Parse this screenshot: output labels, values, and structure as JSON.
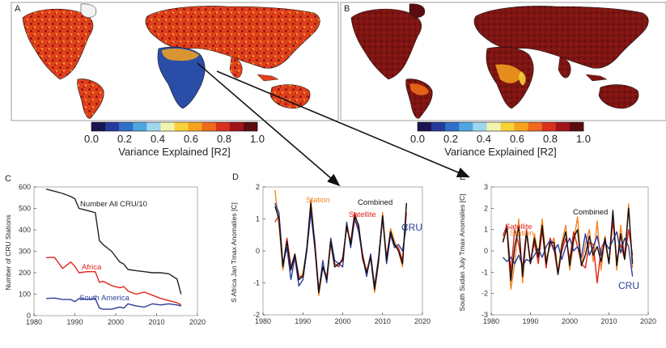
{
  "maps": {
    "left_label": "A",
    "right_label": "B",
    "colorbar": {
      "ticks": [
        "0.0",
        "0.2",
        "0.4",
        "0.6",
        "0.8",
        "1.0"
      ],
      "title": "Variance Explained [R2]",
      "colors": [
        "#1a1450",
        "#263a9c",
        "#2f6fc8",
        "#4fa6e0",
        "#9fd6ee",
        "#f3f3b0",
        "#f9d23a",
        "#f7a21e",
        "#ee6a1c",
        "#d9301e",
        "#a0141a",
        "#5b0c10"
      ]
    }
  },
  "chart_data": [
    {
      "type": "line",
      "panel": "C",
      "xlim": [
        1980,
        2020
      ],
      "ylim": [
        0,
        600
      ],
      "xticks": [
        1980,
        1990,
        2000,
        2010,
        2020
      ],
      "yticks": [
        0,
        100,
        200,
        300,
        400,
        500,
        600
      ],
      "ylabel": "Number of CRU Stations",
      "x": [
        1983,
        1985,
        1987,
        1989,
        1990,
        1991,
        1993,
        1995,
        1996,
        1997,
        1999,
        2001,
        2002,
        2003,
        2005,
        2007,
        2009,
        2011,
        2013,
        2015,
        2016
      ],
      "series": [
        {
          "name": "Number All CRU/10",
          "color": "#222222",
          "values": [
            590,
            580,
            570,
            555,
            545,
            500,
            490,
            480,
            350,
            330,
            300,
            250,
            240,
            215,
            210,
            205,
            200,
            200,
            195,
            170,
            100
          ]
        },
        {
          "name": "Africa",
          "color": "#e2231a",
          "values": [
            270,
            272,
            220,
            250,
            230,
            200,
            205,
            205,
            155,
            160,
            140,
            130,
            135,
            115,
            100,
            110,
            95,
            80,
            70,
            60,
            50
          ]
        },
        {
          "name": "South America",
          "color": "#2c3e99",
          "values": [
            80,
            82,
            75,
            75,
            65,
            80,
            75,
            80,
            35,
            30,
            30,
            40,
            35,
            55,
            45,
            40,
            55,
            50,
            55,
            50,
            45
          ]
        }
      ]
    },
    {
      "type": "line",
      "panel": "D",
      "xlim": [
        1980,
        2020
      ],
      "ylim": [
        -2,
        2
      ],
      "xticks": [
        1980,
        1990,
        2000,
        2010,
        2020
      ],
      "yticks": [
        -2,
        -1,
        0,
        1,
        2
      ],
      "ylabel": "S Africa Jan Tmax Anomalies [C]",
      "x": [
        1983,
        1984,
        1985,
        1986,
        1987,
        1988,
        1989,
        1990,
        1991,
        1992,
        1993,
        1994,
        1995,
        1996,
        1997,
        1998,
        1999,
        2000,
        2001,
        2002,
        2003,
        2004,
        2005,
        2006,
        2007,
        2008,
        2009,
        2010,
        2011,
        2012,
        2013,
        2014,
        2015,
        2016
      ],
      "series": [
        {
          "name": "Station",
          "color": "#f58220",
          "values": [
            1.9,
            0.8,
            -0.6,
            0.3,
            -0.6,
            -0.1,
            -0.9,
            -0.7,
            0.0,
            1.6,
            0.2,
            -1.4,
            -0.5,
            -0.9,
            0.2,
            -0.5,
            -0.4,
            -0.3,
            0.8,
            0.2,
            1.1,
            0.8,
            -0.3,
            -0.6,
            -0.2,
            -1.3,
            -0.4,
            1.2,
            -0.3,
            0.7,
            0.3,
            0.0,
            -0.5,
            1.5
          ]
        },
        {
          "name": "Satellite",
          "color": "#e2231a",
          "values": [
            0.9,
            1.1,
            -0.5,
            0.4,
            -0.5,
            -0.1,
            -0.8,
            -0.8,
            0.1,
            1.3,
            0.3,
            -1.2,
            -0.5,
            -0.8,
            0.3,
            -0.4,
            -0.5,
            -0.2,
            0.7,
            0.3,
            1.2,
            0.7,
            -0.1,
            -0.7,
            -0.1,
            -1.2,
            -0.3,
            1.0,
            -0.2,
            0.6,
            0.2,
            0.1,
            -0.3,
            1.2
          ]
        },
        {
          "name": "CRU",
          "color": "#2c3e99",
          "values": [
            1.5,
            1.2,
            -0.4,
            0.1,
            -0.9,
            -0.2,
            -1.1,
            -0.9,
            0.0,
            1.2,
            0.1,
            -1.3,
            -0.3,
            -1.0,
            0.4,
            -0.3,
            -0.4,
            -0.5,
            0.9,
            0.1,
            1.0,
            0.6,
            -0.2,
            -0.8,
            -0.1,
            -1.1,
            -0.2,
            1.1,
            -0.4,
            0.5,
            0.1,
            0.2,
            0.0,
            0.8
          ]
        },
        {
          "name": "Combined",
          "color": "#111111",
          "values": [
            1.4,
            1.0,
            -0.5,
            0.3,
            -0.6,
            -0.1,
            -0.9,
            -0.8,
            0.1,
            1.5,
            0.2,
            -1.3,
            -0.5,
            -0.9,
            0.3,
            -0.5,
            -0.4,
            -0.3,
            0.8,
            0.2,
            1.1,
            0.8,
            -0.2,
            -0.7,
            -0.2,
            -1.2,
            -0.3,
            1.1,
            -0.3,
            0.6,
            0.2,
            0.0,
            -0.4,
            1.5
          ]
        }
      ]
    },
    {
      "type": "line",
      "panel": "E",
      "xlim": [
        1980,
        2020
      ],
      "ylim": [
        -3,
        3
      ],
      "xticks": [
        1980,
        1990,
        2000,
        2010,
        2020
      ],
      "yticks": [
        -3,
        -2,
        -1,
        0,
        1,
        2,
        3
      ],
      "ylabel": "South Sudan July Tmax Anomalies [C]",
      "x": [
        1983,
        1984,
        1985,
        1986,
        1987,
        1988,
        1989,
        1990,
        1991,
        1992,
        1993,
        1994,
        1995,
        1996,
        1997,
        1998,
        1999,
        2000,
        2001,
        2002,
        2003,
        2004,
        2005,
        2006,
        2007,
        2008,
        2009,
        2010,
        2011,
        2012,
        2013,
        2014,
        2015,
        2016
      ],
      "series": [
        {
          "name": "Station",
          "color": "#f58220",
          "values": [
            0.5,
            1.0,
            -1.8,
            -0.6,
            1.5,
            -1.5,
            0.9,
            -0.6,
            0.8,
            -0.2,
            1.5,
            -0.4,
            0.2,
            0.6,
            -1.0,
            0.4,
            1.2,
            -0.9,
            0.4,
            1.6,
            -0.7,
            0.3,
            1.0,
            -0.5,
            1.4,
            -0.9,
            0.7,
            -0.6,
            1.8,
            -0.9,
            1.2,
            -0.3,
            2.2,
            -0.8
          ]
        },
        {
          "name": "Satellite",
          "color": "#e2231a",
          "values": [
            0.7,
            1.2,
            -1.0,
            1.0,
            0.3,
            -0.8,
            1.0,
            -0.5,
            0.4,
            -0.6,
            1.0,
            -0.8,
            0.6,
            0.1,
            -1.1,
            0.0,
            0.6,
            -0.4,
            0.9,
            0.2,
            -0.6,
            -0.8,
            0.4,
            0.3,
            -1.5,
            0.1,
            0.5,
            -0.6,
            1.4,
            -0.4,
            0.3,
            -0.4,
            1.0,
            -0.2
          ]
        },
        {
          "name": "CRU",
          "color": "#2c3e99",
          "values": [
            -0.3,
            -0.5,
            -0.3,
            -0.6,
            -0.2,
            -0.7,
            -0.4,
            -0.5,
            -0.2,
            0.1,
            -0.3,
            0.2,
            0.5,
            0.0,
            0.3,
            -0.4,
            0.2,
            0.6,
            0.0,
            0.2,
            -0.3,
            0.8,
            -0.2,
            0.2,
            0.7,
            -0.2,
            0.4,
            0.1,
            0.5,
            0.9,
            -0.1,
            0.6,
            0.2,
            -1.2
          ]
        },
        {
          "name": "Combined",
          "color": "#111111",
          "values": [
            0.4,
            1.1,
            -1.4,
            0.2,
            1.1,
            -1.2,
            0.9,
            -0.6,
            0.6,
            -0.3,
            1.2,
            -0.6,
            0.4,
            0.4,
            -1.1,
            0.2,
            0.9,
            -0.7,
            0.6,
            1.0,
            -0.7,
            -0.2,
            0.7,
            -0.2,
            0.2,
            -0.5,
            0.6,
            -0.6,
            1.9,
            -0.7,
            0.8,
            -0.4,
            2.0,
            -0.6
          ]
        }
      ]
    }
  ]
}
